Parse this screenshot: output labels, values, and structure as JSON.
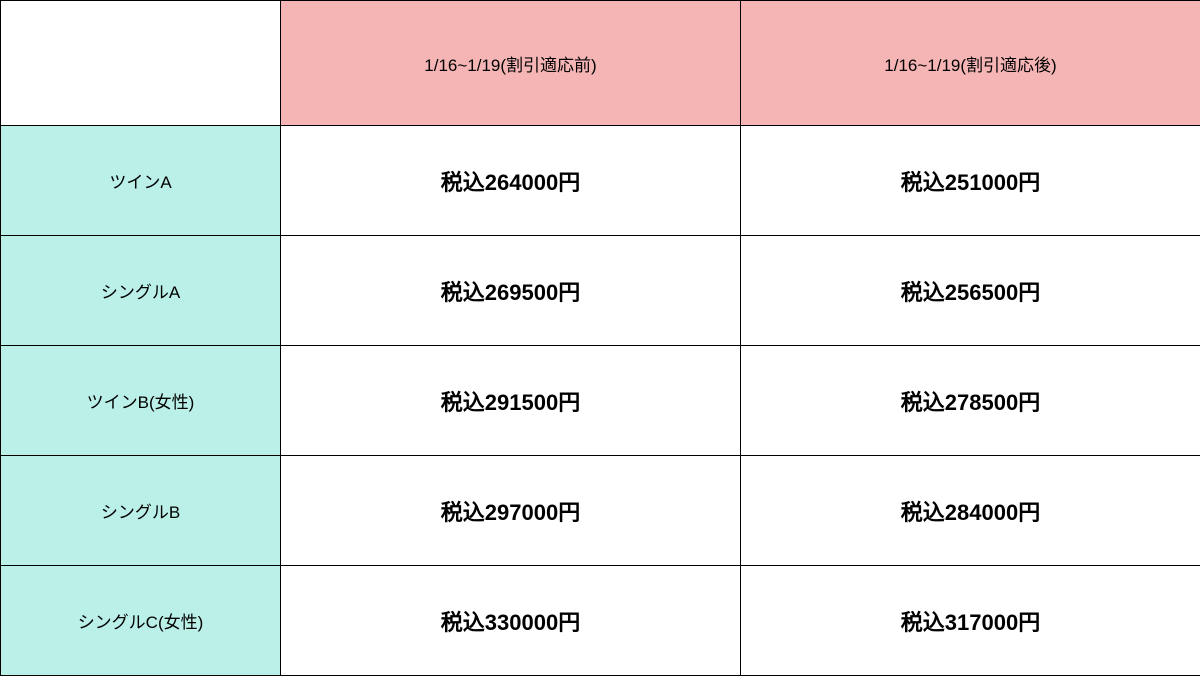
{
  "table": {
    "header_bg_color": "#f5b5b5",
    "room_bg_color": "#baf0e8",
    "border_color": "#000000",
    "background_color": "#ffffff",
    "header_fontsize": 17,
    "room_fontsize": 17,
    "price_fontsize": 22,
    "columns": {
      "empty": "",
      "before_discount": "1/16~1/19(割引適応前)",
      "after_discount": "1/16~1/19(割引適応後)"
    },
    "rows": [
      {
        "room": "ツインA",
        "before": "税込264000円",
        "after": "税込251000円"
      },
      {
        "room": "シングルA",
        "before": "税込269500円",
        "after": "税込256500円"
      },
      {
        "room": "ツインB(女性)",
        "before": "税込291500円",
        "after": "税込278500円"
      },
      {
        "room": "シングルB",
        "before": "税込297000円",
        "after": "税込284000円"
      },
      {
        "room": "シングルC(女性)",
        "before": "税込330000円",
        "after": "税込317000円"
      }
    ]
  }
}
